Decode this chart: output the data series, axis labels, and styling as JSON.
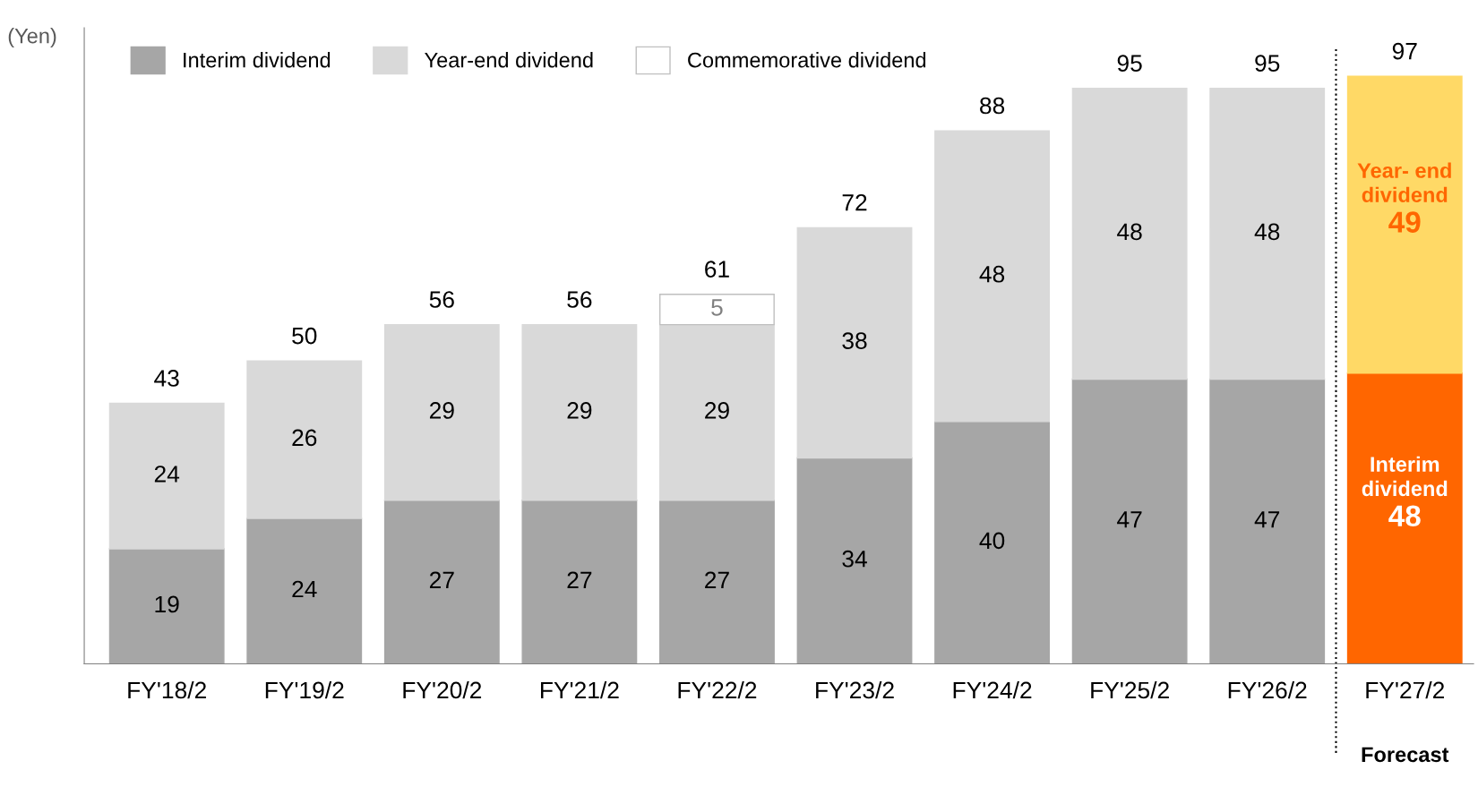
{
  "chart_data": {
    "type": "bar",
    "stacked": true,
    "ylabel": "(Yen)",
    "categories": [
      "FY'18/2",
      "FY'19/2",
      "FY'20/2",
      "FY'21/2",
      "FY'22/2",
      "FY'23/2",
      "FY'24/2",
      "FY'25/2",
      "FY'26/2",
      "FY'27/2"
    ],
    "series": [
      {
        "name": "Interim dividend",
        "color": "#a6a6a6",
        "colors": [
          "#a6a6a6",
          "#a6a6a6",
          "#a6a6a6",
          "#a6a6a6",
          "#a6a6a6",
          "#a6a6a6",
          "#a6a6a6",
          "#a6a6a6",
          "#a6a6a6",
          "#ff6600"
        ],
        "values": [
          19,
          24,
          27,
          27,
          27,
          34,
          40,
          47,
          47,
          48
        ]
      },
      {
        "name": "Year-end dividend",
        "color": "#d9d9d9",
        "colors": [
          "#d9d9d9",
          "#d9d9d9",
          "#d9d9d9",
          "#d9d9d9",
          "#d9d9d9",
          "#d9d9d9",
          "#d9d9d9",
          "#d9d9d9",
          "#d9d9d9",
          "#ffd966"
        ],
        "values": [
          24,
          26,
          29,
          29,
          29,
          38,
          48,
          48,
          48,
          49
        ]
      },
      {
        "name": "Commemorative dividend",
        "color": "#ffffff",
        "values": [
          null,
          null,
          null,
          null,
          5,
          null,
          null,
          null,
          null,
          null
        ]
      }
    ],
    "data_labels": true,
    "totals": [
      "43",
      "50",
      "56",
      "56",
      "61",
      "72",
      "88",
      "95",
      "95",
      "97"
    ],
    "ylim": [
      0,
      105
    ],
    "tick_labels": "x",
    "grid": false,
    "legend": "top left",
    "annotations": [
      "Interim dividend",
      "Year- end dividend",
      "Forecast"
    ]
  }
}
